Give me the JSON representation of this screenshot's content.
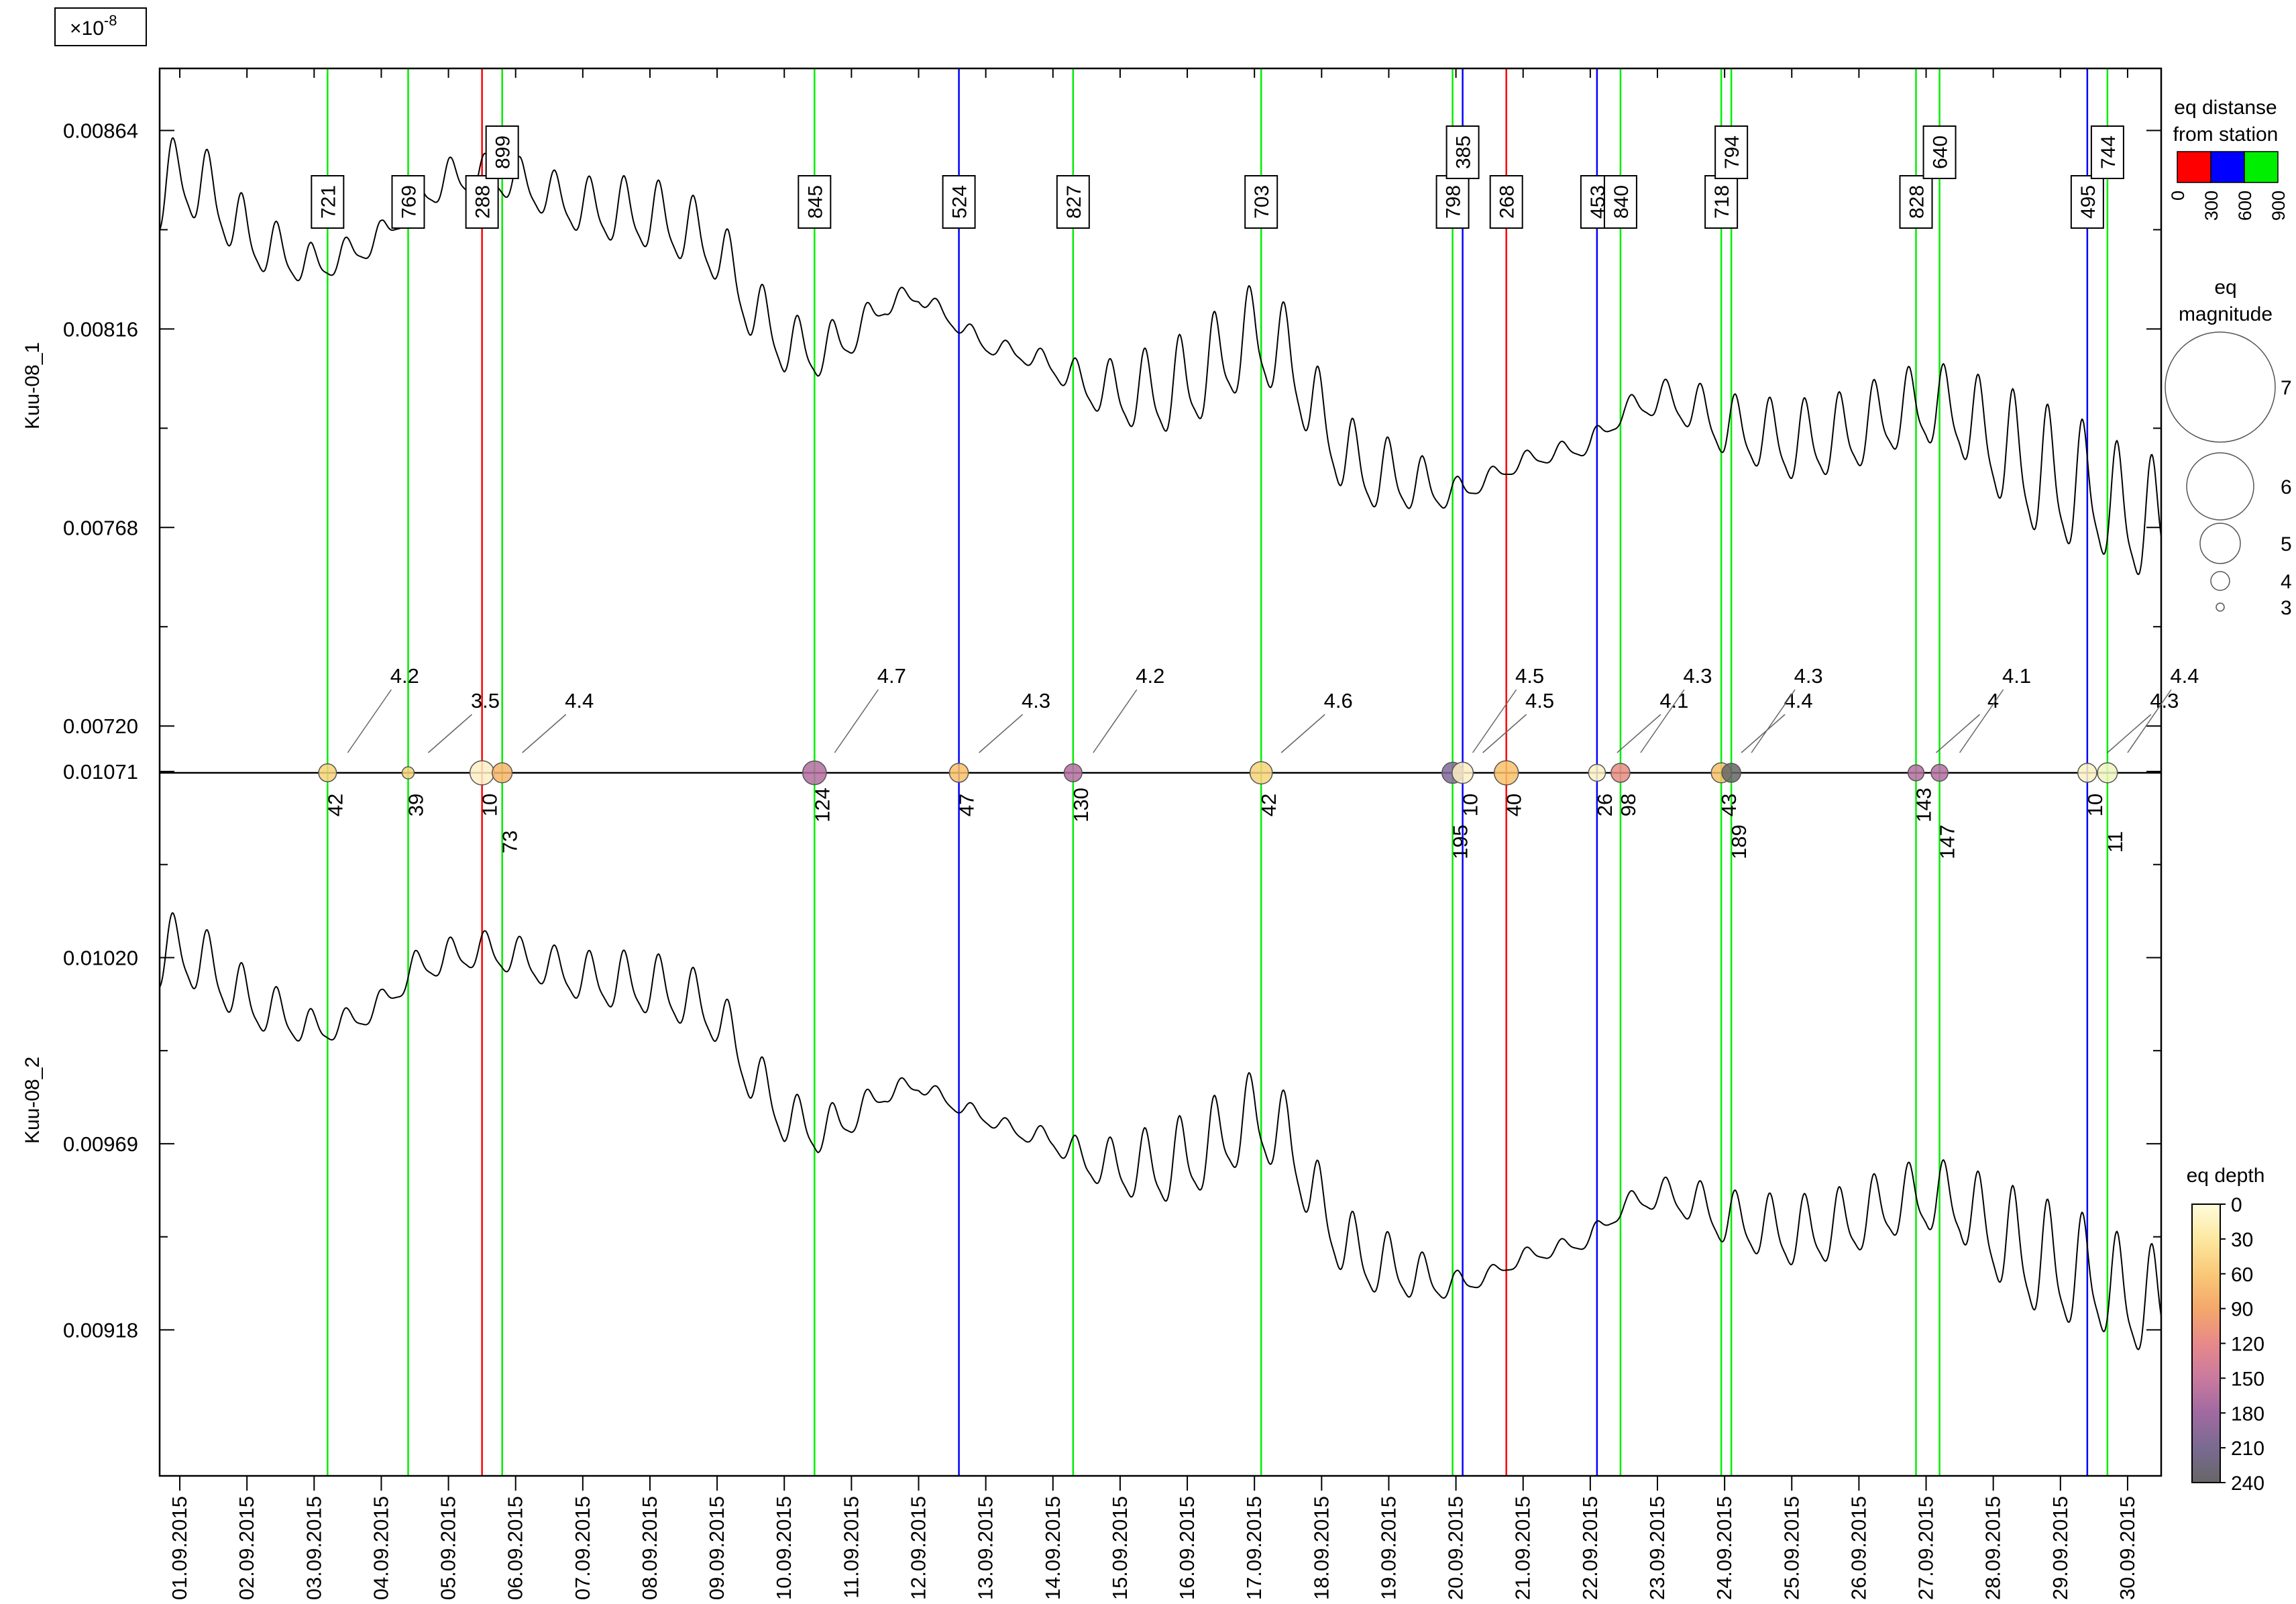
{
  "colors": {
    "near": "#ff0000",
    "mid": "#0000ff",
    "far": "#00ee00",
    "trace": "#000000"
  },
  "chart_data": {
    "type": "line",
    "scale_label": "×10",
    "scale_exponent": "-8",
    "x_dates": [
      "01.09.2015",
      "02.09.2015",
      "03.09.2015",
      "04.09.2015",
      "05.09.2015",
      "06.09.2015",
      "07.09.2015",
      "08.09.2015",
      "09.09.2015",
      "10.09.2015",
      "11.09.2015",
      "12.09.2015",
      "13.09.2015",
      "14.09.2015",
      "15.09.2015",
      "16.09.2015",
      "17.09.2015",
      "18.09.2015",
      "19.09.2015",
      "20.09.2015",
      "21.09.2015",
      "22.09.2015",
      "23.09.2015",
      "24.09.2015",
      "25.09.2015",
      "26.09.2015",
      "27.09.2015",
      "28.09.2015",
      "29.09.2015",
      "30.09.2015"
    ],
    "x_range_days": [
      0.7,
      30.5
    ],
    "panels": [
      {
        "ylabel": "Kuu-08_1",
        "ticks": [
          "0.00864",
          "0.00816",
          "0.00768",
          "0.00720"
        ],
        "tick_values": [
          0.00864,
          0.00816,
          0.00768,
          0.0072
        ],
        "ylim": [
          0.00709,
          0.00879
        ],
        "series": {
          "name": "Kuu-08_1",
          "x": [
            0.7,
            1.0,
            1.5,
            2.0,
            2.5,
            3.0,
            3.5,
            4.0,
            4.5,
            5.0,
            5.5,
            6.0,
            6.5,
            7.0,
            7.5,
            8.0,
            8.5,
            9.0,
            9.5,
            10.0,
            10.5,
            11.0,
            11.5,
            12.0,
            12.5,
            13.0,
            13.5,
            14.0,
            14.5,
            15.0,
            15.5,
            16.0,
            16.5,
            17.0,
            17.5,
            18.0,
            18.5,
            19.0,
            19.5,
            20.0,
            20.5,
            21.0,
            21.5,
            22.0,
            22.5,
            23.0,
            23.5,
            24.0,
            24.5,
            25.0,
            25.5,
            26.0,
            26.5,
            27.0,
            27.5,
            28.0,
            28.5,
            29.0,
            29.5,
            30.0,
            30.5
          ],
          "base": [
            0.00848,
            0.00853,
            0.00848,
            0.00838,
            0.00834,
            0.00831,
            0.00834,
            0.00838,
            0.00848,
            0.00852,
            0.00853,
            0.00852,
            0.00848,
            0.00845,
            0.00844,
            0.00843,
            0.0084,
            0.00835,
            0.00821,
            0.00812,
            0.0081,
            0.00814,
            0.00822,
            0.00824,
            0.00818,
            0.00812,
            0.0081,
            0.00807,
            0.00802,
            0.008,
            0.008,
            0.00802,
            0.00808,
            0.00814,
            0.00809,
            0.00793,
            0.00782,
            0.0078,
            0.00778,
            0.00776,
            0.0078,
            0.00784,
            0.00786,
            0.00788,
            0.00796,
            0.00799,
            0.00797,
            0.00792,
            0.0079,
            0.00788,
            0.00789,
            0.00791,
            0.00795,
            0.00797,
            0.00795,
            0.00788,
            0.00782,
            0.00778,
            0.00776,
            0.0077,
            0.00768
          ],
          "amp": [
            0.00018,
            0.00018,
            0.00017,
            0.00015,
            0.00012,
            9e-05,
            7e-05,
            7e-05,
            8e-05,
            9e-05,
            9e-05,
            0.0001,
            0.00011,
            0.00013,
            0.00015,
            0.00016,
            0.00016,
            0.00016,
            0.00015,
            0.00014,
            0.00012,
            9e-05,
            6e-05,
            4e-05,
            4e-05,
            4e-05,
            4e-05,
            6e-05,
            0.0001,
            0.00015,
            0.0002,
            0.00022,
            0.00022,
            0.00022,
            0.00021,
            0.0002,
            0.00019,
            0.00016,
            0.00012,
            7e-05,
            4e-05,
            4e-05,
            4e-05,
            5e-05,
            5e-05,
            8e-05,
            0.00011,
            0.00014,
            0.00016,
            0.00018,
            0.00018,
            0.00018,
            0.00018,
            0.00018,
            0.0002,
            0.00025,
            0.0003,
            0.0003,
            0.00028,
            0.00028,
            0.00028
          ]
        }
      },
      {
        "ylabel": "Kuu-08_2",
        "ticks": [
          "0.01071",
          "0.01020",
          "0.00969",
          "0.00918"
        ],
        "tick_values": [
          0.01071,
          0.0102,
          0.00969,
          0.00918
        ],
        "ylim": [
          0.00878,
          0.01071
        ],
        "series": {
          "name": "Kuu-08_2",
          "x": [
            0.7,
            1.0,
            1.5,
            2.0,
            2.5,
            3.0,
            3.5,
            4.0,
            4.5,
            5.0,
            5.5,
            6.0,
            6.5,
            7.0,
            7.5,
            8.0,
            8.5,
            9.0,
            9.5,
            10.0,
            10.5,
            11.0,
            11.5,
            12.0,
            12.5,
            13.0,
            13.5,
            14.0,
            14.5,
            15.0,
            15.5,
            16.0,
            16.5,
            17.0,
            17.5,
            18.0,
            18.5,
            19.0,
            19.5,
            20.0,
            20.5,
            21.0,
            21.5,
            22.0,
            22.5,
            23.0,
            23.5,
            24.0,
            24.5,
            25.0,
            25.5,
            26.0,
            26.5,
            27.0,
            27.5,
            28.0,
            28.5,
            29.0,
            29.5,
            30.0,
            30.5
          ],
          "base": [
            0.0102,
            0.01022,
            0.01016,
            0.01008,
            0.01004,
            0.01,
            0.01002,
            0.01007,
            0.01017,
            0.0102,
            0.01022,
            0.0102,
            0.01017,
            0.01014,
            0.01013,
            0.01012,
            0.01009,
            0.01004,
            0.00988,
            0.00976,
            0.00972,
            0.00976,
            0.00983,
            0.00985,
            0.0098,
            0.00976,
            0.00972,
            0.0097,
            0.00964,
            0.00962,
            0.00962,
            0.00964,
            0.0097,
            0.00976,
            0.0097,
            0.0095,
            0.00938,
            0.00935,
            0.00932,
            0.0093,
            0.00933,
            0.00938,
            0.0094,
            0.00943,
            0.00952,
            0.00955,
            0.00953,
            0.00948,
            0.00946,
            0.00944,
            0.00945,
            0.00948,
            0.00952,
            0.00954,
            0.00952,
            0.00944,
            0.00938,
            0.00934,
            0.00932,
            0.00926,
            0.00924
          ],
          "amp": [
            0.00018,
            0.00018,
            0.00017,
            0.00015,
            0.00012,
            9e-05,
            7e-05,
            7e-05,
            8e-05,
            9e-05,
            9e-05,
            0.0001,
            0.00011,
            0.00013,
            0.00015,
            0.00016,
            0.00016,
            0.00016,
            0.00015,
            0.00014,
            0.00012,
            9e-05,
            6e-05,
            4e-05,
            4e-05,
            4e-05,
            4e-05,
            6e-05,
            0.0001,
            0.00015,
            0.0002,
            0.00022,
            0.00022,
            0.00022,
            0.00021,
            0.0002,
            0.00019,
            0.00016,
            0.00012,
            7e-05,
            4e-05,
            4e-05,
            4e-05,
            5e-05,
            5e-05,
            8e-05,
            0.00011,
            0.00014,
            0.00016,
            0.00018,
            0.00018,
            0.00018,
            0.00018,
            0.00018,
            0.0002,
            0.00025,
            0.0003,
            0.0003,
            0.00028,
            0.00028,
            0.00028
          ]
        }
      }
    ],
    "earthquakes": [
      {
        "t": 3.2,
        "dist": "721",
        "mag": "4.2",
        "depth": "42",
        "dc": "#f7d37a"
      },
      {
        "t": 4.4,
        "dist": "769",
        "mag": "3.5",
        "depth": "39",
        "dc": "#f7d37a"
      },
      {
        "t": 5.5,
        "dist": "288",
        "mag": "",
        "depth": "10",
        "dc": "#fdeec6"
      },
      {
        "t": 5.8,
        "dist": "899",
        "mag": "4.4",
        "depth": "73",
        "dc": "#f9b56a"
      },
      {
        "t": 10.45,
        "dist": "845",
        "mag": "4.7",
        "depth": "124",
        "dc": "#b46ea0"
      },
      {
        "t": 12.6,
        "dist": "524",
        "mag": "4.3",
        "depth": "47",
        "dc": "#f9c16a"
      },
      {
        "t": 14.3,
        "dist": "827",
        "mag": "4.2",
        "depth": "130",
        "dc": "#b46ea0"
      },
      {
        "t": 17.1,
        "dist": "703",
        "mag": "4.6",
        "depth": "42",
        "dc": "#f7d37a"
      },
      {
        "t": 19.95,
        "dist": "798",
        "mag": "4.5",
        "depth": "195",
        "dc": "#7f6a9a"
      },
      {
        "t": 20.1,
        "dist": "385",
        "mag": "4.5",
        "depth": "10",
        "dc": "#fdeec6"
      },
      {
        "t": 20.75,
        "dist": "268",
        "mag": "",
        "depth": "40",
        "dc": "#f9c16a"
      },
      {
        "t": 22.1,
        "dist": "453",
        "mag": "4.1",
        "depth": "26",
        "dc": "#fdf2c6"
      },
      {
        "t": 22.45,
        "dist": "840",
        "mag": "4.3",
        "depth": "98",
        "dc": "#ea8b84"
      },
      {
        "t": 23.95,
        "dist": "718",
        "mag": "4.4",
        "depth": "43",
        "dc": "#f7c16a"
      },
      {
        "t": 24.1,
        "dist": "794",
        "mag": "4.3",
        "depth": "189",
        "dc": "#666666"
      },
      {
        "t": 26.85,
        "dist": "828",
        "mag": "4",
        "depth": "143",
        "dc": "#b46ea0"
      },
      {
        "t": 27.2,
        "dist": "640",
        "mag": "4.1",
        "depth": "147",
        "dc": "#b46ea0"
      },
      {
        "t": 29.4,
        "dist": "495",
        "mag": "4.3",
        "depth": "10",
        "dc": "#fdf2c6"
      },
      {
        "t": 29.7,
        "dist": "744",
        "mag": "4.4",
        "depth": "11",
        "dc": "#f0f5c0"
      }
    ],
    "legend_distance": {
      "title_line1": "eq distanse",
      "title_line2": "from station",
      "ticks": [
        "0",
        "300",
        "600",
        "900"
      ]
    },
    "legend_magnitude": {
      "title_line1": "eq",
      "title_line2": "magnitude",
      "labels": [
        "7",
        "6",
        "5",
        "4",
        "3"
      ]
    },
    "legend_depth": {
      "title": "eq depth",
      "labels": [
        "0",
        "30",
        "60",
        "90",
        "120",
        "150",
        "180",
        "210",
        "240"
      ],
      "colors": [
        "#fffcdc",
        "#fde8a0",
        "#f9c878",
        "#f4a86a",
        "#e8898a",
        "#c97a9e",
        "#a06aa0",
        "#7a6a92",
        "#666666"
      ]
    }
  }
}
